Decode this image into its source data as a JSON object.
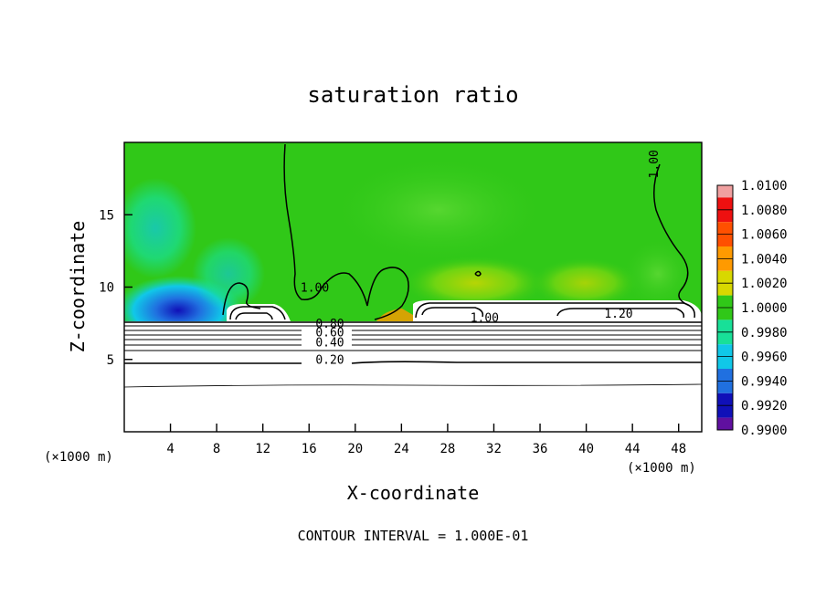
{
  "chart_data": {
    "type": "heatmap",
    "title": "saturation ratio",
    "xlabel": "X-coordinate",
    "ylabel": "Z-coordinate",
    "x_unit_left": "(×1000 m)",
    "x_unit_right": "(×1000 m)",
    "xlim": [
      0,
      50
    ],
    "ylim": [
      0,
      20
    ],
    "x_ticks": [
      4,
      8,
      12,
      16,
      20,
      24,
      28,
      32,
      36,
      40,
      44,
      48
    ],
    "y_ticks": [
      5,
      10,
      15
    ],
    "footnote": "CONTOUR INTERVAL = 1.000E-01",
    "colorbar": {
      "min": 0.99,
      "max": 1.01,
      "tick_labels": [
        "1.0100",
        "1.0080",
        "1.0060",
        "1.0040",
        "1.0020",
        "1.0000",
        "0.9980",
        "0.9960",
        "0.9940",
        "0.9920",
        "0.9900"
      ],
      "colors": [
        "#f0a0a0",
        "#ee1010",
        "#ff5000",
        "#ff9a00",
        "#d8d800",
        "#30c818",
        "#18e098",
        "#10c8e8",
        "#2070e0",
        "#1010b8",
        "#6010a0"
      ]
    },
    "contour_labels": [
      {
        "text": "1.00",
        "x": 16.5,
        "z": 9.7
      },
      {
        "text": "1.00",
        "x": 46.2,
        "z": 18.5
      },
      {
        "text": "1.00",
        "x": 31.2,
        "z": 7.6
      },
      {
        "text": "1.20",
        "x": 42.8,
        "z": 7.9
      },
      {
        "text": "0.80",
        "x": 17.8,
        "z": 7.2
      },
      {
        "text": "0.60",
        "x": 17.8,
        "z": 6.6
      },
      {
        "text": "0.40",
        "x": 17.8,
        "z": 5.9
      },
      {
        "text": "0.20",
        "x": 17.8,
        "z": 4.7
      }
    ]
  }
}
